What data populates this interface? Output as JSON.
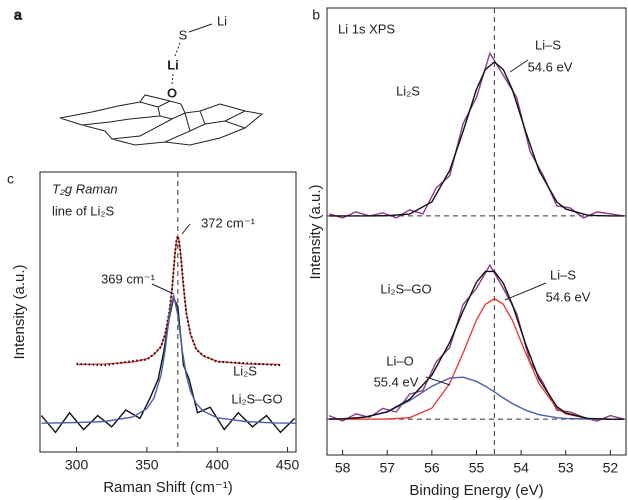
{
  "diagram": {
    "panel_label": "a",
    "atoms": [
      "S",
      "Li",
      "Li",
      "O"
    ]
  },
  "chart_data": [
    {
      "type": "line",
      "panel_label": "b",
      "xlim": [
        58.35,
        51.65
      ],
      "ylim": [
        -0.8,
        10
      ],
      "vline": 54.6,
      "hline": 0,
      "annotations": [
        "Li 1s XPS",
        "Li₂S",
        "Li–S",
        "54.6 eV"
      ],
      "series": [
        {
          "color": "#8e3b8e",
          "x": [
            58.3,
            58.0,
            57.7,
            57.4,
            57.1,
            56.8,
            56.5,
            56.2,
            55.9,
            55.6,
            55.3,
            55.0,
            54.7,
            54.4,
            54.1,
            53.8,
            53.5,
            53.2,
            52.9,
            52.6,
            52.3,
            52.0,
            51.7
          ],
          "values": [
            0.1,
            -0.1,
            0.2,
            0.0,
            0.15,
            -0.1,
            0.3,
            0.1,
            1.4,
            2.0,
            4.6,
            5.9,
            8.1,
            7.0,
            5.9,
            3.2,
            2.0,
            0.5,
            0.4,
            -0.1,
            0.2,
            0.1,
            0.0
          ]
        },
        {
          "color": "#111111",
          "x": [
            58.3,
            58,
            57.5,
            57,
            56.5,
            56,
            55.6,
            55.3,
            55,
            54.8,
            54.6,
            54.4,
            54.2,
            53.9,
            53.6,
            53.2,
            53,
            52.5,
            52,
            51.7
          ],
          "values": [
            0,
            0,
            0,
            0.01,
            0.09,
            0.7,
            2.26,
            4.21,
            6.3,
            7.29,
            7.66,
            7.29,
            6.3,
            4.21,
            2.26,
            0.7,
            0.34,
            0.03,
            0,
            0
          ]
        }
      ]
    },
    {
      "type": "line",
      "xlim": [
        58.35,
        51.65
      ],
      "ylim": [
        -2,
        10
      ],
      "hline": 0,
      "xticks": [
        58,
        57,
        56,
        55,
        54,
        53,
        52
      ],
      "xlabel": "Binding Energy (eV)",
      "ylabel": "Intensity (a.u.)",
      "annotations": [
        "Li₂S–GO",
        "Li–S",
        "54.6 eV",
        "Li–O",
        "55.4 eV"
      ],
      "series": [
        {
          "color": "#8e3b8e",
          "x": [
            58.3,
            58.0,
            57.7,
            57.4,
            57.1,
            56.8,
            56.5,
            56.2,
            55.9,
            55.6,
            55.3,
            55.0,
            54.7,
            54.4,
            54.1,
            53.8,
            53.5,
            53.2,
            52.9,
            52.6,
            52.3,
            52.0,
            51.7
          ],
          "values": [
            0.2,
            -0.1,
            0.3,
            0.1,
            0.6,
            0.4,
            1.4,
            1.6,
            3.2,
            4.0,
            6.4,
            7.3,
            8.6,
            7.3,
            5.9,
            3.2,
            2.0,
            0.5,
            0.4,
            0.1,
            -0.1,
            0.2,
            0.0
          ]
        },
        {
          "color": "#e8403a",
          "x": [
            58.3,
            58,
            57.5,
            57,
            56.5,
            56,
            55.6,
            55.3,
            55,
            54.8,
            54.6,
            54.4,
            54.2,
            53.9,
            53.6,
            53.2,
            53,
            52.5,
            52,
            51.7
          ],
          "values": [
            0,
            0,
            0,
            0.01,
            0.08,
            0.62,
            1.99,
            3.7,
            5.54,
            6.41,
            6.73,
            6.41,
            5.54,
            3.7,
            1.99,
            0.62,
            0.3,
            0.03,
            0,
            0
          ]
        },
        {
          "color": "#4a5fa8",
          "x": [
            58.3,
            58,
            57.5,
            57,
            56.5,
            56,
            55.6,
            55.3,
            55,
            54.8,
            54.6,
            54.4,
            54.2,
            53.9,
            53.6,
            53.2,
            53,
            52.5,
            52,
            51.7
          ],
          "values": [
            0.01,
            0.02,
            0.11,
            0.4,
            1.03,
            1.84,
            2.29,
            2.34,
            2.11,
            1.84,
            1.52,
            1.18,
            0.88,
            0.5,
            0.25,
            0.08,
            0.04,
            0.01,
            0,
            0
          ]
        },
        {
          "color": "#111111",
          "x": [
            58.3,
            58,
            57.5,
            57,
            56.5,
            56,
            55.6,
            55.3,
            55,
            54.8,
            54.6,
            54.4,
            54.2,
            53.9,
            53.6,
            53.2,
            53,
            52.5,
            52,
            51.7
          ],
          "values": [
            0.01,
            0.02,
            0.11,
            0.41,
            1.11,
            2.46,
            4.28,
            6.04,
            7.65,
            8.25,
            8.25,
            7.59,
            6.42,
            4.2,
            2.24,
            0.7,
            0.34,
            0.04,
            0,
            0
          ]
        }
      ]
    },
    {
      "type": "line",
      "panel_label": "c",
      "xlim": [
        274,
        456
      ],
      "ylim": [
        0,
        10
      ],
      "vline": 372,
      "xticks": [
        300,
        350,
        400,
        450
      ],
      "xlabel": "Raman Shift (cm⁻¹)",
      "ylabel": "Intensity (a.u.)",
      "annotations": [
        "T₂g Raman",
        "line of Li₂S",
        "372 cm⁻¹",
        "369 cm⁻¹",
        "Li₂S",
        "Li₂S–GO"
      ],
      "series": [
        {
          "color": "#e8403a",
          "x": [
            300,
            320,
            340,
            350,
            355,
            360,
            363,
            366,
            368,
            370,
            371,
            372,
            373,
            374,
            376,
            378,
            381,
            385,
            390,
            400,
            420,
            445
          ],
          "values": [
            3.12,
            3.14,
            3.21,
            3.33,
            3.47,
            3.78,
            4.19,
            4.99,
            5.9,
            7.07,
            7.5,
            7.7,
            7.5,
            7.07,
            5.9,
            4.99,
            4.19,
            3.69,
            3.43,
            3.24,
            3.15,
            3.12
          ]
        },
        {
          "color": "#111111",
          "dash": "1.5 2.5",
          "x": [
            300,
            320,
            340,
            350,
            355,
            360,
            363,
            366,
            368,
            370,
            371,
            372,
            373,
            374,
            376,
            378,
            381,
            385,
            390,
            400,
            420,
            445
          ],
          "values": [
            3.15,
            3.1,
            3.25,
            3.3,
            3.5,
            3.75,
            4.22,
            5.02,
            5.86,
            7.1,
            7.55,
            7.72,
            7.46,
            7.02,
            5.95,
            4.95,
            4.22,
            3.66,
            3.45,
            3.22,
            3.17,
            3.1
          ]
        },
        {
          "color": "#111111",
          "x": [
            275,
            285,
            295,
            305,
            315,
            325,
            335,
            345,
            352,
            358,
            362,
            366,
            369,
            372,
            376,
            380,
            386,
            395,
            405,
            415,
            425,
            435,
            445,
            455
          ],
          "values": [
            1.3,
            0.7,
            1.4,
            0.8,
            1.3,
            0.9,
            1.5,
            1.2,
            1.9,
            2.6,
            3.6,
            4.8,
            5.5,
            5.2,
            3.1,
            2.6,
            1.4,
            1.6,
            0.8,
            1.4,
            0.9,
            1.3,
            0.7,
            1.2
          ]
        },
        {
          "color": "#4a5fa8",
          "x": [
            275,
            300,
            320,
            340,
            350,
            355,
            360,
            363,
            366,
            369,
            372,
            375,
            378,
            381,
            385,
            390,
            400,
            420,
            440,
            456
          ],
          "values": [
            1.03,
            1.05,
            1.09,
            1.25,
            1.55,
            1.92,
            2.74,
            3.66,
            4.9,
            5.6,
            4.9,
            3.66,
            2.74,
            2.17,
            1.74,
            1.46,
            1.22,
            1.09,
            1.04,
            1.03
          ]
        }
      ]
    }
  ]
}
